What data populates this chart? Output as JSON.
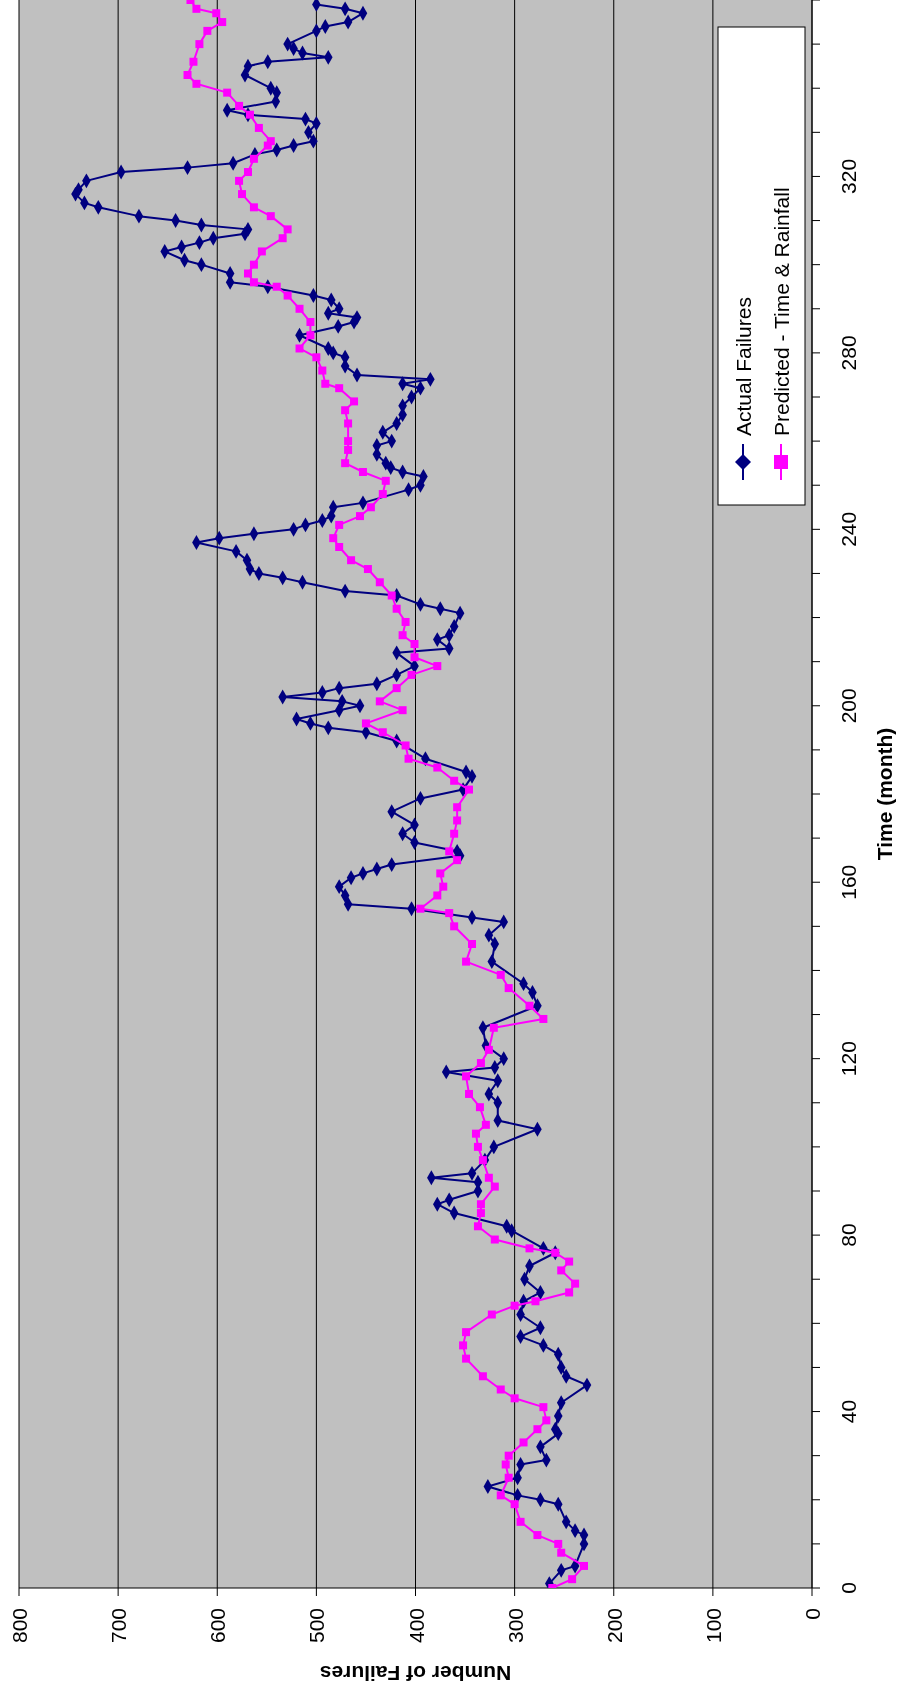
{
  "chart_data": {
    "type": "line",
    "xlabel": "Number of Failures",
    "ylabel": "Time (month)",
    "xlim": [
      800,
      0
    ],
    "xticks": [
      800,
      700,
      600,
      500,
      400,
      300,
      200,
      100,
      0
    ],
    "ylim": [
      0,
      360
    ],
    "yticks": [
      0,
      {
        "value": 10,
        "label": null
      },
      {
        "value": 20,
        "label": null
      },
      {
        "value": 30,
        "label": null
      },
      40,
      {
        "value": 50,
        "label": null
      },
      {
        "value": 60,
        "label": null
      },
      {
        "value": 70,
        "label": null
      },
      80,
      {
        "value": 90,
        "label": null
      },
      {
        "value": 100,
        "label": null
      },
      {
        "value": 110,
        "label": null
      },
      120,
      {
        "value": 130,
        "label": null
      },
      {
        "value": 140,
        "label": null
      },
      {
        "value": 150,
        "label": null
      },
      160,
      {
        "value": 170,
        "label": null
      },
      {
        "value": 180,
        "label": null
      },
      {
        "value": 190,
        "label": null
      },
      200,
      {
        "value": 210,
        "label": null
      },
      {
        "value": 220,
        "label": null
      },
      {
        "value": 230,
        "label": null
      },
      240,
      {
        "value": 250,
        "label": null
      },
      {
        "value": 260,
        "label": null
      },
      {
        "value": 270,
        "label": null
      },
      280,
      {
        "value": 290,
        "label": null
      },
      {
        "value": 300,
        "label": null
      },
      {
        "value": 310,
        "label": null
      },
      320,
      {
        "value": 330,
        "label": null
      },
      {
        "value": 340,
        "label": null
      },
      {
        "value": 350,
        "label": null
      },
      {
        "value": 360,
        "label": null
      }
    ],
    "grid": "x",
    "legend": "top right",
    "line_style": "solid",
    "series": [
      {
        "name": "Actual Failures",
        "color": "#000080",
        "marker": "diamond",
        "values": [
          1,
          4,
          5,
          10,
          12,
          13,
          15,
          19,
          20,
          21,
          23,
          25,
          28,
          29,
          32,
          35,
          36,
          39,
          42,
          46,
          48,
          50,
          53,
          55,
          57,
          59,
          62,
          65,
          67,
          70,
          73,
          76,
          77,
          81,
          82,
          85,
          87,
          88,
          90,
          92,
          93,
          94,
          97,
          100,
          104,
          106,
          110,
          112,
          115,
          117,
          118,
          120,
          123,
          127,
          132,
          135,
          137,
          142,
          146,
          148,
          151,
          152,
          154,
          155,
          157,
          159,
          161,
          162,
          163,
          164,
          166,
          167,
          169,
          171,
          173,
          176,
          179,
          181,
          184,
          185,
          188,
          192,
          194,
          195,
          196,
          197,
          199,
          200,
          201,
          202,
          203,
          204,
          205,
          207,
          209,
          212,
          213,
          215,
          216,
          218,
          221,
          222,
          223,
          225,
          226,
          228,
          229,
          230,
          231,
          233,
          235,
          237,
          238,
          239,
          240,
          241,
          242,
          243,
          245,
          246,
          249,
          250,
          252,
          253,
          254,
          255,
          257,
          259,
          260,
          262,
          264,
          266,
          268,
          270,
          272,
          273,
          274,
          275,
          277,
          279,
          280,
          281,
          284,
          286,
          287,
          288,
          289,
          290,
          292,
          293,
          295,
          296,
          298,
          300,
          301,
          303,
          304,
          305,
          306,
          307,
          308,
          309,
          310,
          311,
          313,
          314,
          316,
          317,
          319,
          321,
          322,
          323,
          325,
          326,
          327,
          328,
          330,
          332,
          333,
          334,
          335,
          337,
          339,
          340,
          343,
          345,
          346,
          347,
          348,
          349,
          350,
          353,
          354,
          355,
          357,
          358,
          359
        ],
        "x": [
          265,
          253,
          239,
          230,
          230,
          239,
          248,
          256,
          274,
          297,
          327,
          297,
          294,
          268,
          274,
          256,
          259,
          256,
          253,
          227,
          248,
          253,
          256,
          271,
          294,
          274,
          294,
          291,
          274,
          290,
          285,
          259,
          271,
          303,
          308,
          361,
          378,
          366,
          337,
          337,
          384,
          343,
          330,
          321,
          277,
          317,
          317,
          326,
          317,
          369,
          320,
          311,
          329,
          332,
          277,
          282,
          291,
          323,
          320,
          326,
          311,
          343,
          404,
          468,
          471,
          477,
          465,
          453,
          439,
          424,
          355,
          358,
          401,
          413,
          401,
          424,
          395,
          352,
          343,
          349,
          390,
          419,
          450,
          488,
          506,
          520,
          477,
          456,
          474,
          534,
          494,
          477,
          439,
          419,
          401,
          419,
          366,
          378,
          366,
          361,
          355,
          375,
          395,
          419,
          471,
          514,
          534,
          558,
          567,
          570,
          581,
          621,
          598,
          563,
          523,
          511,
          494,
          485,
          483,
          453,
          407,
          395,
          392,
          413,
          425,
          430,
          439,
          439,
          424,
          433,
          419,
          413,
          413,
          404,
          395,
          413,
          385,
          459,
          471,
          471,
          483,
          488,
          517,
          478,
          462,
          459,
          488,
          477,
          485,
          503,
          549,
          587,
          587,
          616,
          633,
          653,
          636,
          618,
          604,
          572,
          569,
          616,
          642,
          679,
          720,
          734,
          743,
          740,
          732,
          697,
          630,
          584,
          562,
          540,
          523,
          503,
          508,
          500,
          511,
          569,
          590,
          541,
          540,
          546,
          572,
          569,
          549,
          488,
          514,
          523,
          529,
          500,
          491,
          468,
          453,
          471,
          500
        ]
      },
      {
        "name": "Predicted - Time & Rainfall",
        "color": "#ff00ff",
        "marker": "square",
        "values": [
          0,
          2,
          5,
          8,
          10,
          12,
          15,
          19,
          21,
          25,
          28,
          30,
          33,
          36,
          38,
          41,
          43,
          45,
          48,
          52,
          55,
          58,
          62,
          64,
          65,
          67,
          69,
          72,
          74,
          76,
          77,
          79,
          82,
          85,
          87,
          91,
          93,
          97,
          100,
          103,
          105,
          109,
          112,
          116,
          119,
          122,
          127,
          129,
          132,
          136,
          139,
          142,
          146,
          150,
          153,
          154,
          157,
          159,
          162,
          165,
          167,
          171,
          174,
          177,
          181,
          183,
          186,
          188,
          191,
          194,
          196,
          199,
          201,
          204,
          207,
          209,
          211,
          214,
          216,
          219,
          222,
          225,
          228,
          231,
          233,
          236,
          238,
          241,
          243,
          245,
          248,
          251,
          253,
          255,
          258,
          260,
          264,
          267,
          269,
          272,
          273,
          276,
          279,
          281,
          284,
          287,
          290,
          293,
          295,
          296,
          298,
          300,
          303,
          306,
          308,
          311,
          313,
          316,
          319,
          321,
          324,
          327,
          328,
          331,
          334,
          336,
          339,
          341,
          343,
          346,
          350,
          353,
          355,
          357,
          358,
          360
        ],
        "x": [
          262,
          242,
          230,
          253,
          256,
          277,
          294,
          300,
          314,
          306,
          309,
          306,
          291,
          277,
          268,
          271,
          300,
          314,
          332,
          349,
          352,
          349,
          323,
          300,
          279,
          245,
          239,
          253,
          245,
          259,
          285,
          320,
          337,
          334,
          334,
          320,
          326,
          332,
          337,
          339,
          329,
          335,
          346,
          349,
          334,
          326,
          321,
          271,
          285,
          306,
          314,
          349,
          343,
          361,
          366,
          395,
          378,
          372,
          375,
          358,
          366,
          361,
          358,
          358,
          346,
          361,
          378,
          407,
          410,
          433,
          450,
          413,
          436,
          419,
          404,
          378,
          401,
          401,
          413,
          410,
          419,
          424,
          436,
          448,
          465,
          477,
          483,
          477,
          456,
          445,
          433,
          430,
          453,
          471,
          468,
          468,
          468,
          471,
          462,
          477,
          491,
          494,
          500,
          517,
          506,
          506,
          517,
          529,
          540,
          563,
          569,
          563,
          555,
          534,
          529,
          546,
          563,
          575,
          578,
          569,
          563,
          549,
          546,
          558,
          567,
          578,
          590,
          621,
          630,
          624,
          618,
          610,
          595,
          601,
          621,
          627
        ]
      }
    ]
  }
}
